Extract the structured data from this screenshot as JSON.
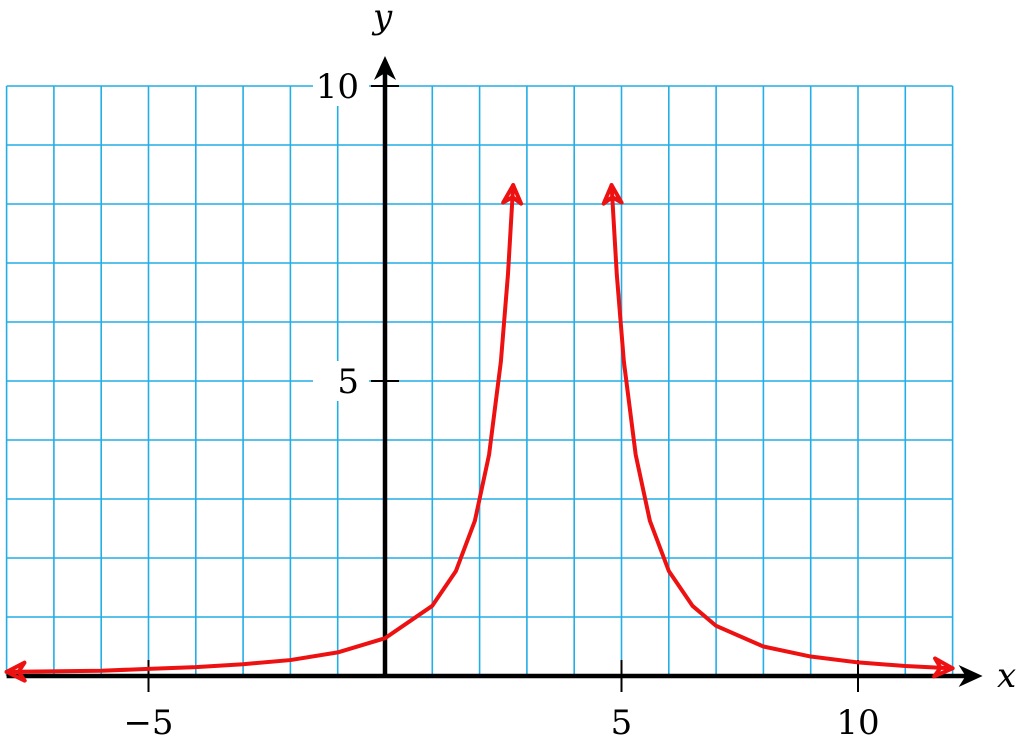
{
  "chart_data": {
    "type": "line",
    "title": "",
    "xlabel": "x",
    "ylabel": "y",
    "xlim": [
      -8,
      12
    ],
    "ylim": [
      0,
      10
    ],
    "grid": true,
    "grid_step_x": 1,
    "grid_step_y": 1,
    "x_ticks": [
      -5,
      5,
      10
    ],
    "x_tick_labels": [
      "−5",
      "5",
      "10"
    ],
    "y_ticks": [
      5,
      10
    ],
    "y_tick_labels": [
      "5",
      "10"
    ],
    "curve_function": "y = 9 / (x - 3.75)^2, with vertical asymptote x = 3.75",
    "series": [
      {
        "color": "#ee1111",
        "x": [
          -8,
          -6,
          -5,
          -4,
          -3,
          -2,
          -1,
          0,
          1,
          1.5,
          1.9,
          2.2,
          2.45,
          2.6,
          2.71
        ],
        "y": [
          0.07,
          0.09,
          0.12,
          0.15,
          0.2,
          0.27,
          0.4,
          0.64,
          1.19,
          1.78,
          2.63,
          3.75,
          5.33,
          6.81,
          8.32
        ]
      },
      {
        "color": "#ee1111",
        "x": [
          4.79,
          4.9,
          5.05,
          5.3,
          5.6,
          6,
          6.5,
          7,
          8,
          9,
          10,
          11,
          12
        ],
        "y": [
          8.32,
          6.81,
          5.33,
          3.75,
          2.63,
          1.78,
          1.19,
          0.85,
          0.5,
          0.33,
          0.23,
          0.17,
          0.13
        ]
      }
    ],
    "axis_color": "#000000",
    "grid_color": "#22aee6"
  }
}
